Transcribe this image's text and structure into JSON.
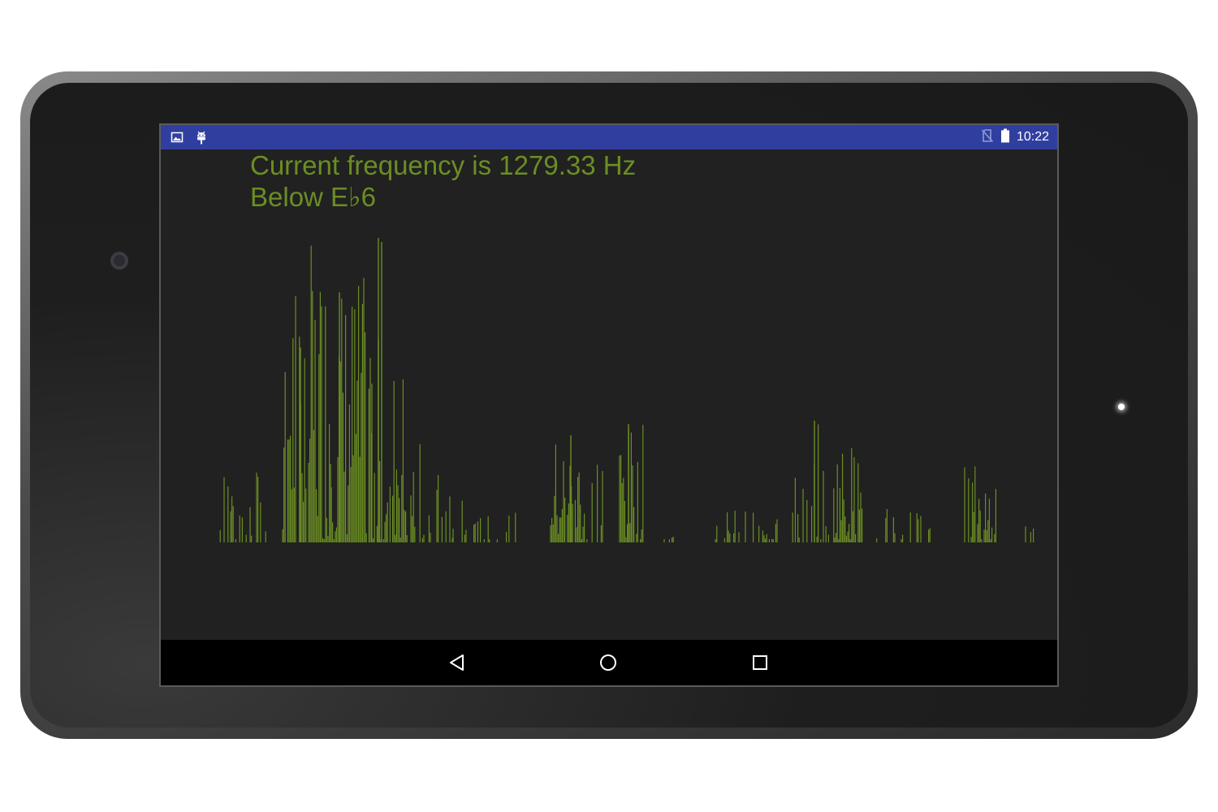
{
  "status_bar": {
    "time": "10:22",
    "left_icons": [
      "image-notification-icon",
      "android-debug-icon"
    ],
    "right_icons": [
      "no-sim-icon",
      "battery-icon"
    ],
    "color": "#303f9f"
  },
  "display": {
    "frequency_line": "Current frequency is 1279.33 Hz",
    "note_line": "Below E♭6",
    "text_color": "#6b8e23"
  },
  "spectrum": {
    "bar_color": "#6b8e23",
    "background": "#212121"
  },
  "nav_bar": {
    "buttons": [
      "back",
      "home",
      "recents"
    ]
  }
}
